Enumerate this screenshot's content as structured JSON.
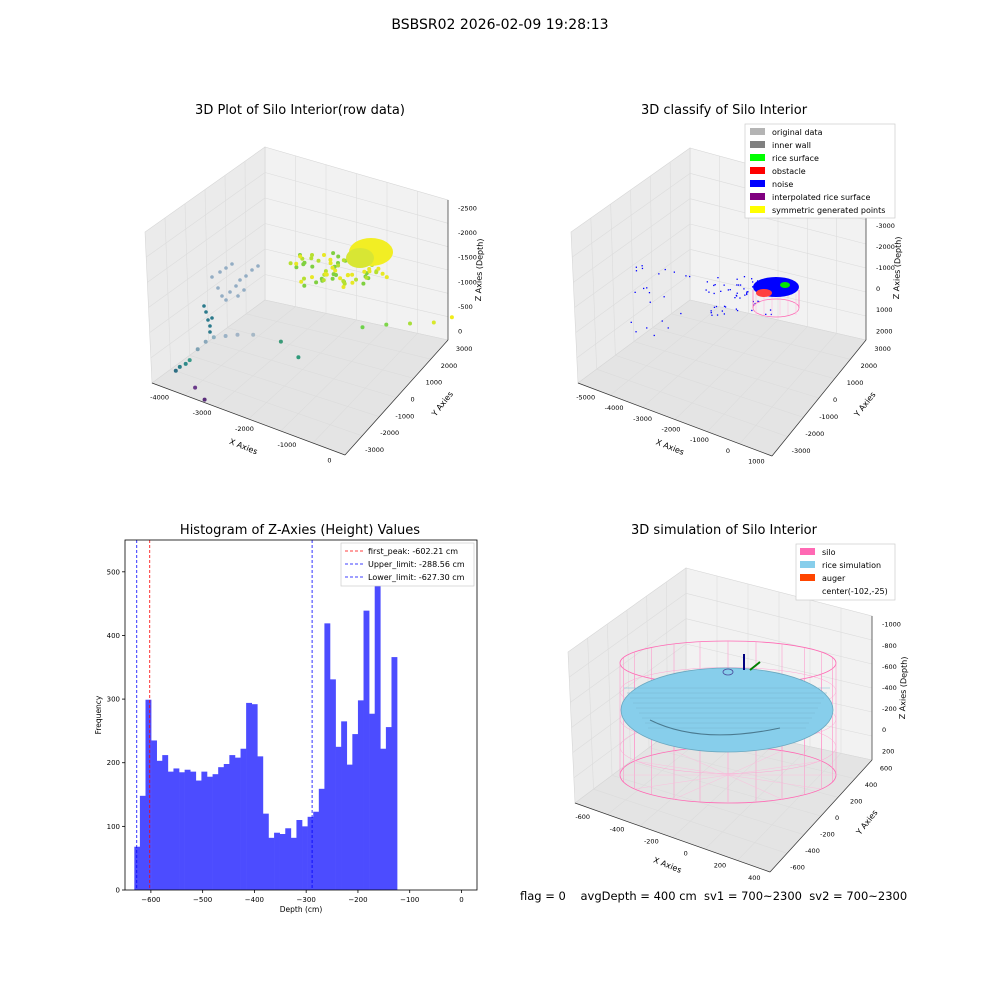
{
  "suptitle": "BSBSR02 2026-02-09 19:28:13",
  "status_line": "flag = 0    avgDepth = 400 cm  sv1 = 700~2300  sv2 = 700~2300",
  "chart_data": [
    {
      "type": "scatter",
      "title": "3D Plot of Silo Interior(row data)",
      "xlabel": "X Axies",
      "ylabel": "Y Axies",
      "zlabel": "Z Axies (Depth)",
      "x_ticks": [
        "-4000",
        "-3000",
        "-2000",
        "-1000",
        "0"
      ],
      "y_ticks": [
        "-3000",
        "-2000",
        "-1000",
        "0",
        "1000",
        "2000",
        "3000"
      ],
      "z_ticks": [
        "0",
        "-500",
        "-1000",
        "-1500",
        "-2000",
        "-2500"
      ],
      "points": [
        {
          "x": -4100,
          "y": -2800,
          "z": -2400,
          "c": "#2e6f84"
        },
        {
          "x": -4050,
          "y": -2700,
          "z": -2300,
          "c": "#2e7f8a"
        },
        {
          "x": -3950,
          "y": -2600,
          "z": -2200,
          "c": "#2f8a8a"
        },
        {
          "x": -3900,
          "y": -2500,
          "z": -2100,
          "c": "#3a9a8a"
        },
        {
          "x": -3800,
          "y": -2300,
          "z": -1800,
          "c": "#7fa2b4"
        },
        {
          "x": -3700,
          "y": -2100,
          "z": -1600,
          "c": "#8aa8bb"
        },
        {
          "x": -3600,
          "y": -1900,
          "z": -1500,
          "c": "#8fb0c0"
        },
        {
          "x": -3400,
          "y": -1700,
          "z": -1450,
          "c": "#9bb2c6"
        },
        {
          "x": -3200,
          "y": -1500,
          "z": -1400,
          "c": "#a2b4c6"
        },
        {
          "x": -2900,
          "y": -1300,
          "z": -1350,
          "c": "#a6b8c6"
        },
        {
          "x": -2400,
          "y": -900,
          "z": -1500,
          "c": "#3a9a78"
        },
        {
          "x": -2000,
          "y": -800,
          "z": -1850,
          "c": "#2f9a7a"
        },
        {
          "x": -3600,
          "y": -2800,
          "z": -2700,
          "c": "#6a3a8a"
        },
        {
          "x": -3300,
          "y": -2900,
          "z": -2900,
          "c": "#5a2e7a"
        },
        {
          "x": -1200,
          "y": 800,
          "z": -1200,
          "c": "#6ed24a"
        },
        {
          "x": -800,
          "y": 1200,
          "z": -1100,
          "c": "#7ed64a"
        },
        {
          "x": -400,
          "y": 1600,
          "z": -1050,
          "c": "#a8de3a"
        },
        {
          "x": 0,
          "y": 2000,
          "z": -1000,
          "c": "#d8e82a"
        },
        {
          "x": 200,
          "y": 2500,
          "z": -950,
          "c": "#f0ec1a"
        }
      ]
    },
    {
      "type": "scatter",
      "title": "3D classify of Silo Interior",
      "xlabel": "X Axies",
      "ylabel": "Y Axies",
      "zlabel": "Z Axies (Depth)",
      "x_ticks": [
        "-5000",
        "-4000",
        "-3000",
        "-2000",
        "-1000",
        "0",
        "1000"
      ],
      "y_ticks": [
        "-3000",
        "-2000",
        "-1000",
        "0",
        "1000",
        "2000",
        "3000"
      ],
      "z_ticks": [
        "2000",
        "1000",
        "0",
        "-1000",
        "-2000",
        "-3000",
        "-4000"
      ],
      "legend": [
        {
          "label": "original data",
          "color": "#b4b4b4"
        },
        {
          "label": "inner wall",
          "color": "#808080"
        },
        {
          "label": "rice surface",
          "color": "#00ff00"
        },
        {
          "label": "obstacle",
          "color": "#ff0000"
        },
        {
          "label": "noise",
          "color": "#0000ff"
        },
        {
          "label": "interpolated rice surface",
          "color": "#800080"
        },
        {
          "label": "symmetric generated points",
          "color": "#ffff00"
        }
      ]
    },
    {
      "type": "bar",
      "title": "Histogram of Z-Axies (Height) Values",
      "xlabel": "Depth (cm)",
      "ylabel": "Frequency",
      "xlim": [
        -650,
        30
      ],
      "ylim": [
        0,
        550
      ],
      "x_ticks": [
        -600,
        -500,
        -400,
        -300,
        -200,
        -100,
        0
      ],
      "y_ticks": [
        0,
        100,
        200,
        300,
        400,
        500
      ],
      "bin_start": -632,
      "bin_width": 10.8,
      "values": [
        68,
        148,
        299,
        235,
        203,
        212,
        186,
        191,
        185,
        189,
        186,
        172,
        186,
        178,
        182,
        193,
        198,
        212,
        208,
        222,
        294,
        292,
        210,
        120,
        82,
        90,
        88,
        97,
        82,
        110,
        100,
        115,
        123,
        159,
        419,
        331,
        225,
        265,
        197,
        245,
        298,
        439,
        277,
        521,
        222,
        256,
        366
      ],
      "bar_color": "#4c4cff",
      "vlines": [
        {
          "label": "first_peak: -602.21 cm",
          "x": -602.21,
          "color": "#ff0000"
        },
        {
          "label": "Upper_limit: -288.56 cm",
          "x": -288.56,
          "color": "#0000ff"
        },
        {
          "label": "Lower_limit: -627.30 cm",
          "x": -627.3,
          "color": "#0000ff"
        }
      ]
    },
    {
      "type": "scatter",
      "title": "3D simulation of Silo Interior",
      "xlabel": "X Axies",
      "ylabel": "Y Axies",
      "zlabel": "Z Axies (Depth)",
      "x_ticks": [
        "-600",
        "-400",
        "-200",
        "0",
        "200",
        "400"
      ],
      "y_ticks": [
        "-600",
        "-400",
        "-200",
        "0",
        "200",
        "400",
        "600"
      ],
      "z_ticks": [
        "200",
        "0",
        "-200",
        "-400",
        "-600",
        "-800",
        "-1000"
      ],
      "legend": [
        {
          "label": "silo",
          "color": "#ff69b4"
        },
        {
          "label": "rice simulation",
          "color": "#87ceeb"
        },
        {
          "label": "auger",
          "color": "#ff4500"
        },
        {
          "label": "center(-102,-25)",
          "color": ""
        }
      ]
    }
  ]
}
